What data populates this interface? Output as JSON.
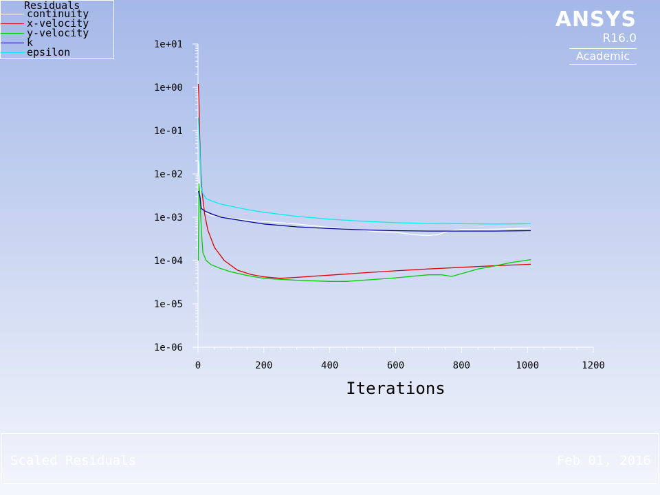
{
  "brand": {
    "name": "ANSYS",
    "version": "R16.0",
    "edition": "Academic"
  },
  "footer": {
    "title": "Scaled Residuals",
    "date": "Feb 01, 2016"
  },
  "chart_data": {
    "type": "line",
    "legend_title": "Residuals",
    "legend_position": "top-left",
    "xlabel": "Iterations",
    "ylabel": "",
    "xlim": [
      0,
      1200
    ],
    "ylim": [
      1e-06,
      10
    ],
    "yscale": "log",
    "grid": false,
    "x_ticks": [
      "0",
      "200",
      "400",
      "600",
      "800",
      "1000",
      "1200"
    ],
    "y_ticks": [
      "1e+01",
      "1e+00",
      "1e-01",
      "1e-02",
      "1e-03",
      "1e-04",
      "1e-05",
      "1e-06"
    ],
    "series": [
      {
        "name": "continuity",
        "color": "#ffffff",
        "x": [
          1,
          3,
          6,
          10,
          20,
          40,
          70,
          100,
          150,
          200,
          250,
          300,
          400,
          500,
          550,
          600,
          650,
          700,
          730,
          760,
          800,
          900,
          1000,
          1010
        ],
        "y": [
          0.02,
          0.01,
          0.004,
          0.002,
          0.0013,
          0.0011,
          0.001,
          0.00095,
          0.00085,
          0.0008,
          0.00075,
          0.0007,
          0.00058,
          0.0005,
          0.00046,
          0.00045,
          0.0004,
          0.00038,
          0.0004,
          0.00048,
          0.00052,
          0.00053,
          0.00056,
          0.00057
        ]
      },
      {
        "name": "x-velocity",
        "color": "#dd0000",
        "x": [
          1,
          3,
          5,
          8,
          12,
          20,
          30,
          50,
          80,
          120,
          160,
          200,
          250,
          300,
          400,
          500,
          600,
          700,
          800,
          900,
          1010
        ],
        "y": [
          1.2,
          0.5,
          0.08,
          0.015,
          0.004,
          0.0012,
          0.0005,
          0.0002,
          0.0001,
          6e-05,
          4.8e-05,
          4.2e-05,
          3.9e-05,
          4.1e-05,
          4.6e-05,
          5.2e-05,
          5.8e-05,
          6.4e-05,
          7e-05,
          7.6e-05,
          8.2e-05
        ]
      },
      {
        "name": "y-velocity",
        "color": "#00cc00",
        "x": [
          1,
          3,
          6,
          10,
          15,
          25,
          40,
          70,
          100,
          150,
          200,
          300,
          400,
          450,
          500,
          600,
          700,
          740,
          770,
          800,
          850,
          900,
          950,
          1010
        ],
        "y": [
          0.0001,
          0.006,
          0.003,
          0.0005,
          0.00015,
          0.0001,
          8e-05,
          6.5e-05,
          5.5e-05,
          4.5e-05,
          3.9e-05,
          3.5e-05,
          3.3e-05,
          3.3e-05,
          3.5e-05,
          4e-05,
          4.7e-05,
          4.7e-05,
          4.3e-05,
          5e-05,
          6.4e-05,
          7.5e-05,
          9e-05,
          0.000105
        ]
      },
      {
        "name": "k",
        "color": "#000099",
        "x": [
          1,
          3,
          6,
          10,
          20,
          40,
          70,
          100,
          150,
          200,
          300,
          400,
          500,
          600,
          700,
          800,
          900,
          1000,
          1010
        ],
        "y": [
          0.004,
          0.0035,
          0.003,
          0.0016,
          0.0014,
          0.0012,
          0.001,
          0.00092,
          0.0008,
          0.0007,
          0.0006,
          0.00055,
          0.00051,
          0.00049,
          0.00048,
          0.00048,
          0.00048,
          0.00049,
          0.00049
        ]
      },
      {
        "name": "epsilon",
        "color": "#00eeee",
        "x": [
          1,
          3,
          6,
          10,
          15,
          25,
          40,
          70,
          100,
          150,
          200,
          300,
          400,
          500,
          600,
          700,
          800,
          900,
          1000,
          1010
        ],
        "y": [
          0.2,
          0.1,
          0.03,
          0.005,
          0.0035,
          0.0027,
          0.0024,
          0.002,
          0.0018,
          0.0015,
          0.0013,
          0.00105,
          0.0009,
          0.00081,
          0.00075,
          0.00072,
          0.00071,
          0.0007,
          0.00071,
          0.00072
        ]
      }
    ]
  }
}
